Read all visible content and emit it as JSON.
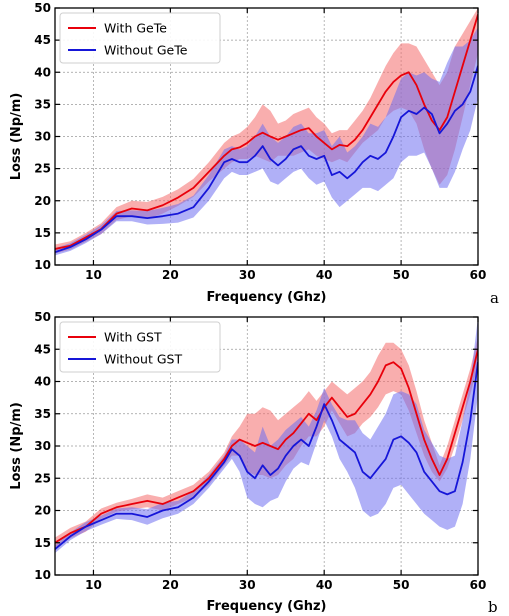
{
  "colors": {
    "with": "#e8000b",
    "without": "#1616d8",
    "with_band": "#f46b6b",
    "without_band": "#6f6ff0"
  },
  "chart_data": [
    {
      "panel_label": "a",
      "type": "line",
      "xlabel": "Frequency (Ghz)",
      "ylabel": "Loss (Np/m)",
      "xlim": [
        5,
        60
      ],
      "ylim": [
        10,
        50
      ],
      "xticks": [
        10,
        20,
        30,
        40,
        50,
        60
      ],
      "yticks": [
        10,
        15,
        20,
        25,
        30,
        35,
        40,
        45,
        50
      ],
      "grid": true,
      "legend_position": "top-left",
      "series": [
        {
          "name": "With GeTe",
          "color_key": "with",
          "x": [
            5,
            7,
            9,
            11,
            13,
            15,
            17,
            19,
            21,
            23,
            25,
            27,
            28,
            29,
            30,
            31,
            32,
            33,
            34,
            35,
            36,
            37,
            38,
            39,
            40,
            41,
            42,
            43,
            44,
            45,
            46,
            47,
            48,
            49,
            50,
            51,
            52,
            53,
            54,
            55,
            56,
            57,
            58,
            59,
            60
          ],
          "y": [
            12.5,
            13.0,
            14.3,
            15.6,
            18.0,
            18.8,
            18.5,
            19.3,
            20.5,
            22.0,
            24.5,
            27.0,
            28.0,
            28.3,
            29.0,
            30.0,
            30.6,
            30.0,
            29.5,
            30.0,
            30.5,
            31.0,
            31.3,
            30.0,
            29.0,
            28.0,
            28.7,
            28.5,
            29.5,
            31.0,
            33.0,
            35.0,
            37.0,
            38.5,
            39.5,
            40.0,
            38.0,
            35.0,
            32.5,
            31.0,
            33.0,
            37.0,
            41.0,
            45.0,
            49.0
          ],
          "band_low": [
            11.8,
            12.4,
            13.6,
            14.8,
            17.0,
            17.6,
            17.2,
            18.0,
            19.2,
            20.6,
            23.0,
            25.0,
            26.0,
            26.5,
            26.5,
            27.0,
            26.5,
            26.0,
            27.0,
            27.0,
            27.0,
            27.5,
            28.0,
            27.0,
            26.5,
            26.0,
            26.5,
            26.0,
            27.5,
            29.0,
            30.0,
            31.0,
            33.0,
            34.0,
            34.5,
            34.0,
            32.0,
            28.0,
            25.0,
            22.5,
            24.0,
            28.0,
            33.0,
            38.0,
            43.0
          ],
          "band_high": [
            13.2,
            13.7,
            15.0,
            16.5,
            19.0,
            20.0,
            19.8,
            20.6,
            21.8,
            23.4,
            26.0,
            29.0,
            30.0,
            30.5,
            31.5,
            33.0,
            35.0,
            34.0,
            32.0,
            32.5,
            33.5,
            34.0,
            34.5,
            33.0,
            32.0,
            30.5,
            31.0,
            31.0,
            32.5,
            34.0,
            36.0,
            38.5,
            41.0,
            43.0,
            44.5,
            44.5,
            44.0,
            42.0,
            40.0,
            38.0,
            40.0,
            44.0,
            46.0,
            48.0,
            50.0
          ]
        },
        {
          "name": "Without GeTe",
          "color_key": "without",
          "x": [
            5,
            7,
            9,
            11,
            13,
            15,
            17,
            19,
            21,
            23,
            25,
            27,
            28,
            29,
            30,
            31,
            32,
            33,
            34,
            35,
            36,
            37,
            38,
            39,
            40,
            41,
            42,
            43,
            44,
            45,
            46,
            47,
            48,
            49,
            50,
            51,
            52,
            53,
            54,
            55,
            56,
            57,
            58,
            59,
            60
          ],
          "y": [
            12.0,
            12.8,
            14.0,
            15.5,
            17.6,
            17.6,
            17.3,
            17.6,
            18.0,
            19.0,
            22.0,
            26.0,
            26.5,
            26.0,
            26.0,
            27.0,
            28.5,
            26.5,
            25.5,
            26.5,
            28.0,
            28.5,
            27.0,
            26.5,
            27.0,
            24.0,
            24.5,
            23.5,
            24.5,
            26.0,
            27.0,
            26.5,
            27.5,
            30.0,
            33.0,
            34.0,
            33.5,
            34.5,
            33.5,
            30.5,
            32.0,
            34.0,
            35.0,
            37.0,
            41.0
          ],
          "band_low": [
            11.5,
            12.2,
            13.4,
            14.8,
            16.8,
            16.8,
            16.3,
            16.4,
            16.6,
            17.4,
            20.0,
            23.5,
            24.5,
            24.0,
            24.0,
            24.5,
            25.0,
            23.0,
            22.5,
            23.5,
            24.5,
            25.0,
            23.5,
            22.5,
            23.0,
            20.5,
            19.0,
            20.0,
            21.0,
            22.0,
            22.0,
            21.5,
            22.5,
            23.5,
            26.0,
            27.0,
            27.0,
            27.5,
            25.0,
            22.0,
            22.0,
            24.5,
            28.0,
            31.0,
            36.0
          ],
          "band_high": [
            12.6,
            13.4,
            14.7,
            16.2,
            18.4,
            18.5,
            18.4,
            18.9,
            19.5,
            20.8,
            24.0,
            28.0,
            28.5,
            28.0,
            28.5,
            30.0,
            32.0,
            30.0,
            29.0,
            30.0,
            31.5,
            32.0,
            30.5,
            30.5,
            31.0,
            28.5,
            30.0,
            27.5,
            28.5,
            30.0,
            32.0,
            31.5,
            33.0,
            36.0,
            39.0,
            40.0,
            39.5,
            40.0,
            39.0,
            38.5,
            41.5,
            44.0,
            44.0,
            45.0,
            47.0
          ]
        }
      ]
    },
    {
      "panel_label": "b",
      "type": "line",
      "xlabel": "Frequency (Ghz)",
      "ylabel": "Loss (Np/m)",
      "xlim": [
        5,
        60
      ],
      "ylim": [
        10,
        50
      ],
      "xticks": [
        10,
        20,
        30,
        40,
        50,
        60
      ],
      "yticks": [
        10,
        15,
        20,
        25,
        30,
        35,
        40,
        45,
        50
      ],
      "grid": true,
      "legend_position": "top-left",
      "series": [
        {
          "name": "With GST",
          "color_key": "with",
          "x": [
            5,
            7,
            9,
            11,
            13,
            15,
            17,
            19,
            21,
            23,
            25,
            27,
            28,
            29,
            30,
            31,
            32,
            33,
            34,
            35,
            36,
            37,
            38,
            39,
            40,
            41,
            42,
            43,
            44,
            45,
            46,
            47,
            48,
            49,
            50,
            51,
            52,
            53,
            54,
            55,
            56,
            57,
            58,
            59,
            60
          ],
          "y": [
            15.0,
            16.5,
            17.5,
            19.5,
            20.5,
            21.0,
            21.5,
            21.0,
            22.0,
            23.0,
            25.0,
            28.0,
            30.0,
            31.0,
            30.5,
            30.0,
            30.5,
            30.0,
            29.5,
            31.0,
            32.0,
            33.5,
            35.0,
            34.0,
            36.0,
            37.5,
            36.0,
            34.5,
            35.0,
            36.5,
            38.0,
            40.0,
            42.5,
            43.0,
            42.0,
            39.0,
            35.0,
            31.0,
            28.0,
            25.5,
            28.0,
            32.0,
            36.0,
            40.0,
            45.0
          ],
          "band_low": [
            14.2,
            15.7,
            16.7,
            18.7,
            19.8,
            20.2,
            20.5,
            20.0,
            21.0,
            22.0,
            24.0,
            27.0,
            28.5,
            28.5,
            26.0,
            25.5,
            25.5,
            25.0,
            25.5,
            27.0,
            28.0,
            30.0,
            31.5,
            31.5,
            33.0,
            35.5,
            33.5,
            31.5,
            32.0,
            33.5,
            34.5,
            36.0,
            38.0,
            38.5,
            38.0,
            35.5,
            32.0,
            28.5,
            26.0,
            24.5,
            26.5,
            30.0,
            34.0,
            38.0,
            42.5
          ],
          "band_high": [
            15.8,
            17.3,
            18.3,
            20.3,
            21.2,
            21.8,
            22.5,
            22.0,
            23.0,
            24.0,
            26.0,
            29.0,
            31.5,
            33.0,
            35.0,
            35.0,
            36.0,
            35.5,
            34.0,
            35.0,
            36.0,
            37.0,
            38.5,
            37.0,
            38.5,
            40.0,
            39.0,
            38.0,
            39.0,
            40.0,
            41.5,
            44.0,
            46.0,
            46.0,
            45.0,
            42.5,
            38.5,
            34.0,
            30.5,
            27.0,
            30.0,
            34.0,
            38.0,
            42.0,
            47.0
          ]
        },
        {
          "name": "Without GST",
          "color_key": "without",
          "x": [
            5,
            7,
            9,
            11,
            13,
            15,
            17,
            19,
            21,
            23,
            25,
            27,
            28,
            29,
            30,
            31,
            32,
            33,
            34,
            35,
            36,
            37,
            38,
            39,
            40,
            41,
            42,
            43,
            44,
            45,
            46,
            47,
            48,
            49,
            50,
            51,
            52,
            53,
            54,
            55,
            56,
            57,
            58,
            59,
            60
          ],
          "y": [
            14.0,
            16.0,
            17.5,
            18.5,
            19.5,
            19.5,
            19.0,
            20.0,
            20.5,
            22.0,
            24.5,
            27.5,
            29.5,
            28.5,
            26.0,
            25.0,
            27.0,
            25.5,
            26.5,
            28.5,
            30.0,
            31.0,
            30.0,
            33.0,
            36.5,
            34.0,
            31.0,
            30.0,
            29.0,
            26.0,
            25.0,
            26.5,
            28.0,
            31.0,
            31.5,
            30.5,
            29.0,
            26.0,
            24.5,
            23.0,
            22.5,
            23.0,
            27.5,
            34.0,
            43.0
          ],
          "band_low": [
            13.4,
            15.4,
            16.8,
            17.8,
            18.7,
            18.5,
            17.8,
            18.8,
            19.5,
            21.0,
            23.5,
            26.5,
            28.0,
            26.0,
            22.0,
            21.0,
            20.5,
            21.5,
            22.0,
            24.5,
            26.5,
            27.5,
            27.0,
            30.5,
            34.0,
            31.5,
            28.0,
            26.0,
            23.5,
            20.0,
            19.0,
            19.5,
            21.0,
            23.5,
            24.0,
            22.5,
            21.0,
            19.5,
            18.5,
            17.5,
            17.0,
            17.5,
            21.0,
            28.0,
            38.0
          ],
          "band_high": [
            14.6,
            16.6,
            18.2,
            19.2,
            20.3,
            20.5,
            20.2,
            21.2,
            21.5,
            23.0,
            25.5,
            28.5,
            31.0,
            31.0,
            30.0,
            29.0,
            33.0,
            30.0,
            31.0,
            32.5,
            33.5,
            34.5,
            33.0,
            35.5,
            39.0,
            36.5,
            34.5,
            34.0,
            34.0,
            32.0,
            31.0,
            33.0,
            35.0,
            38.0,
            38.5,
            38.0,
            36.5,
            32.5,
            30.5,
            28.5,
            28.0,
            28.5,
            34.0,
            40.0,
            50.0
          ]
        }
      ]
    }
  ]
}
